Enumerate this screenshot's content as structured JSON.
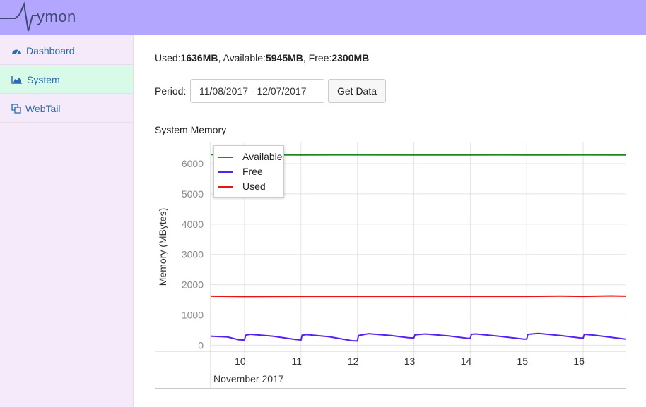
{
  "app": {
    "logo_text": "ymon"
  },
  "sidebar": {
    "items": [
      {
        "label": "Dashboard",
        "icon": "dashboard-icon",
        "active": false
      },
      {
        "label": "System",
        "icon": "area-chart-icon",
        "active": true
      },
      {
        "label": "WebTail",
        "icon": "copy-icon",
        "active": false
      }
    ]
  },
  "summary": {
    "used_label": "Used:",
    "used_value": "1636MB",
    "available_label": ", Available:",
    "available_value": "5945MB",
    "free_label": ", Free:",
    "free_value": "2300MB"
  },
  "period": {
    "label": "Period:",
    "value": "11/08/2017 - 12/07/2017",
    "button_label": "Get Data"
  },
  "colors": {
    "header": "#b3a6ff",
    "available": "#1a8a1a",
    "free": "#5522ee",
    "used": "#ee1111",
    "nav_active": "#d8fbe9",
    "sidebar_bg": "#f5eafa"
  },
  "chart_data": {
    "type": "line",
    "title": "System Memory",
    "ylabel": "Memory (MBytes)",
    "xlabel": "November 2017",
    "x_ticks": [
      "10",
      "11",
      "12",
      "13",
      "14",
      "15",
      "16"
    ],
    "y_ticks": [
      "0",
      "1000",
      "2000",
      "3000",
      "4000",
      "5000",
      "6000"
    ],
    "ylim": [
      -200,
      6700
    ],
    "xlim": [
      9.4,
      16.75
    ],
    "grid": true,
    "legend_position": "top-left",
    "series": [
      {
        "name": "Available",
        "color": "#1a8a1a",
        "x": [
          9.4,
          9.6,
          10.0,
          10.5,
          11.0,
          11.5,
          12.0,
          13.0,
          14.0,
          14.5,
          15.0,
          15.5,
          16.0,
          16.5,
          16.75
        ],
        "y": [
          6300,
          6290,
          6300,
          6290,
          6285,
          6290,
          6290,
          6285,
          6285,
          6290,
          6285,
          6285,
          6290,
          6285,
          6285
        ]
      },
      {
        "name": "Free",
        "color": "#5522ee",
        "x": [
          9.4,
          9.7,
          9.9,
          10.0,
          10.02,
          10.1,
          10.5,
          10.9,
          11.0,
          11.02,
          11.1,
          11.5,
          11.9,
          12.0,
          12.02,
          12.2,
          12.6,
          12.9,
          13.0,
          13.02,
          13.2,
          13.6,
          13.95,
          14.0,
          14.02,
          14.1,
          14.5,
          14.95,
          15.0,
          15.02,
          15.2,
          15.6,
          15.95,
          16.0,
          16.02,
          16.2,
          16.5,
          16.75
        ],
        "y": [
          300,
          270,
          180,
          170,
          330,
          360,
          300,
          190,
          170,
          330,
          350,
          280,
          150,
          140,
          320,
          380,
          320,
          250,
          240,
          340,
          370,
          310,
          230,
          230,
          360,
          370,
          300,
          200,
          200,
          360,
          390,
          320,
          240,
          240,
          360,
          330,
          260,
          200
        ]
      },
      {
        "name": "Used",
        "color": "#ee1111",
        "x": [
          9.4,
          10.0,
          11.0,
          12.0,
          13.0,
          14.0,
          15.0,
          15.6,
          16.0,
          16.5,
          16.75
        ],
        "y": [
          1620,
          1610,
          1615,
          1615,
          1615,
          1615,
          1615,
          1625,
          1615,
          1630,
          1620
        ]
      }
    ]
  }
}
